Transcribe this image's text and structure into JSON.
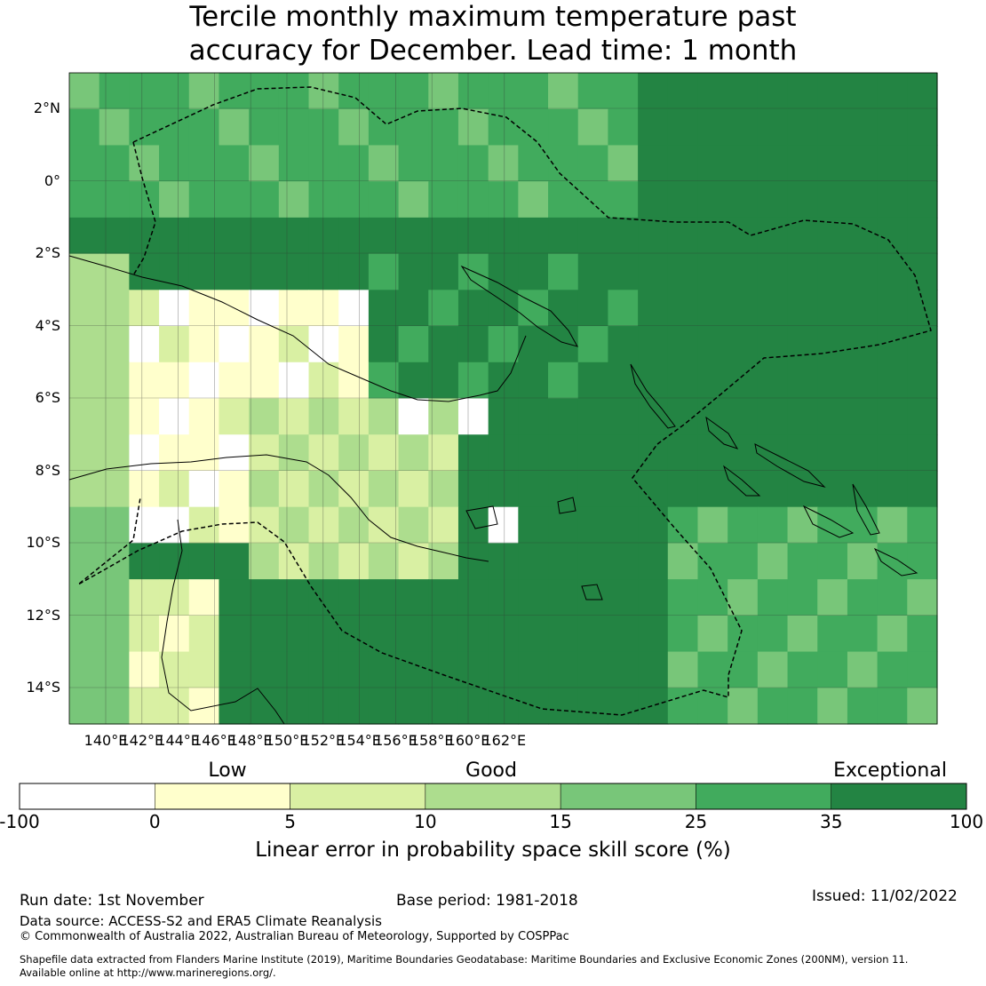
{
  "title_line1": "Tercile monthly maximum temperature past",
  "title_line2": "accuracy for December. Lead time: 1 month",
  "map": {
    "lon_labels": [
      "140°E",
      "142°E",
      "144°E",
      "146°E",
      "148°E",
      "150°E",
      "152°E",
      "154°E",
      "156°E",
      "158°E",
      "160°E",
      "162°E"
    ],
    "lat_labels": [
      "2°N",
      "0°",
      "2°S",
      "4°S",
      "6°S",
      "8°S",
      "10°S",
      "12°S",
      "14°S"
    ]
  },
  "colorbar": {
    "category_labels": [
      "Low",
      "Good",
      "Exceptional"
    ],
    "tick_labels": [
      "-100",
      "0",
      "5",
      "10",
      "15",
      "25",
      "35",
      "100"
    ],
    "colors": [
      "#ffffff",
      "#ffffcc",
      "#d9f0a3",
      "#addd8e",
      "#78c679",
      "#41ab5d",
      "#238443"
    ],
    "title": "Linear error in probability space skill score (%)"
  },
  "footer": {
    "run_date": "Run date: 1st November",
    "base_period": "Base period: 1981-2018",
    "issued": "Issued: 11/02/2022",
    "data_source": "Data source: ACCESS-S2 and ERA5 Climate Reanalysis",
    "copyright": "© Commonwealth of Australia 2022, Australian Bureau of Meteorology, Supported by COSPPac",
    "shapefile_line1": "Shapefile data extracted from Flanders Marine Institute (2019), Maritime Boundaries Geodatabase: Maritime Boundaries and Exclusive Economic Zones (200NM), version 11.",
    "shapefile_line2": "Available online at http://www.marineregions.org/."
  }
}
